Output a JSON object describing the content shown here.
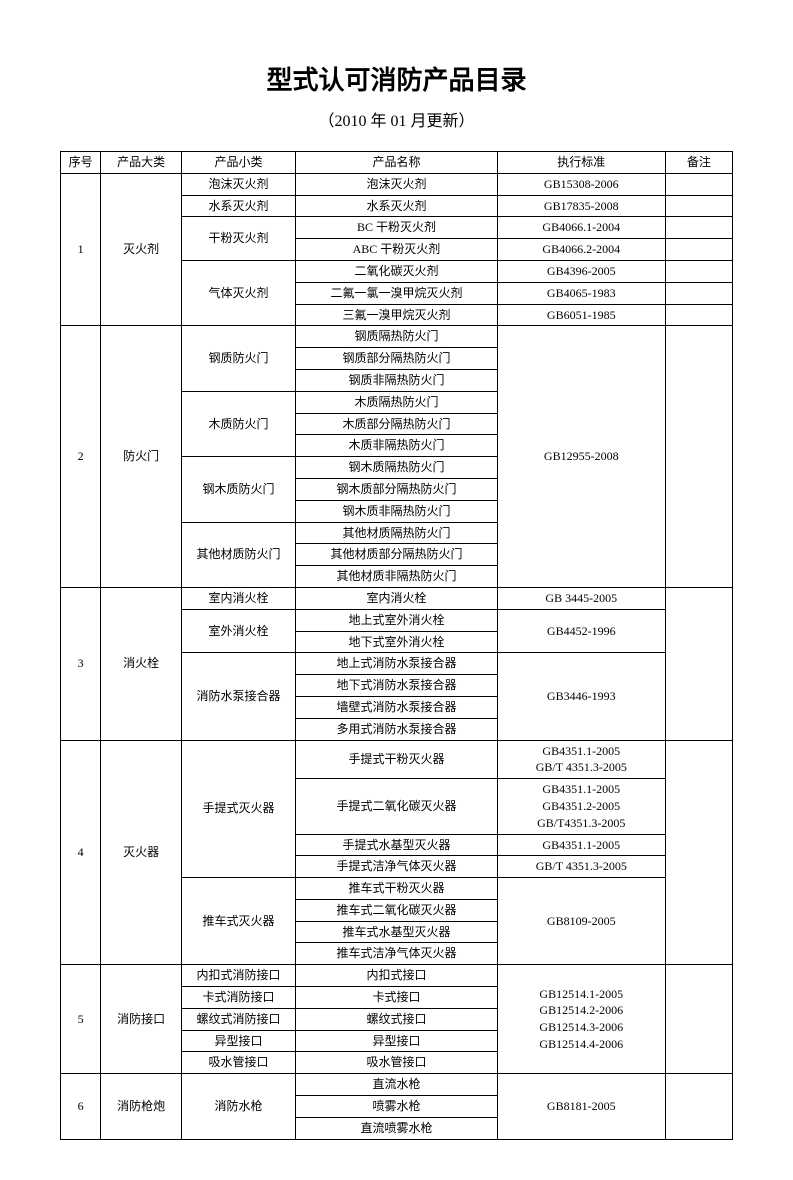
{
  "title": "型式认可消防产品目录",
  "subtitle": "（2010 年 01 月更新）",
  "columns": [
    "序号",
    "产品大类",
    "产品小类",
    "产品名称",
    "执行标准",
    "备注"
  ],
  "rows": [
    {
      "seq": "1",
      "seqRowspan": 7,
      "cat": "灭火剂",
      "catRowspan": 7,
      "sub": "泡沫灭火剂",
      "subRowspan": 1,
      "name": "泡沫灭火剂",
      "std": "GB15308-2006",
      "stdRowspan": 1,
      "remark": "",
      "remarkRowspan": 1
    },
    {
      "sub": "水系灭火剂",
      "subRowspan": 1,
      "name": "水系灭火剂",
      "std": "GB17835-2008",
      "stdRowspan": 1,
      "remark": "",
      "remarkRowspan": 1
    },
    {
      "sub": "干粉灭火剂",
      "subRowspan": 2,
      "name": "BC 干粉灭火剂",
      "std": "GB4066.1-2004",
      "stdRowspan": 1,
      "remark": "",
      "remarkRowspan": 1
    },
    {
      "name": "ABC 干粉灭火剂",
      "std": "GB4066.2-2004",
      "stdRowspan": 1,
      "remark": "",
      "remarkRowspan": 1
    },
    {
      "sub": "气体灭火剂",
      "subRowspan": 3,
      "name": "二氧化碳灭火剂",
      "std": "GB4396-2005",
      "stdRowspan": 1,
      "remark": "",
      "remarkRowspan": 1
    },
    {
      "name": "二氟一氯一溴甲烷灭火剂",
      "std": "GB4065-1983",
      "stdRowspan": 1,
      "remark": "",
      "remarkRowspan": 1
    },
    {
      "name": "三氟一溴甲烷灭火剂",
      "std": "GB6051-1985",
      "stdRowspan": 1,
      "remark": "",
      "remarkRowspan": 1
    },
    {
      "seq": "2",
      "seqRowspan": 12,
      "cat": "防火门",
      "catRowspan": 12,
      "sub": "钢质防火门",
      "subRowspan": 3,
      "name": "钢质隔热防火门",
      "std": "GB12955-2008",
      "stdRowspan": 12,
      "remark": "",
      "remarkRowspan": 12
    },
    {
      "name": "钢质部分隔热防火门"
    },
    {
      "name": "钢质非隔热防火门"
    },
    {
      "sub": "木质防火门",
      "subRowspan": 3,
      "name": "木质隔热防火门"
    },
    {
      "name": "木质部分隔热防火门"
    },
    {
      "name": "木质非隔热防火门"
    },
    {
      "sub": "钢木质防火门",
      "subRowspan": 3,
      "name": "钢木质隔热防火门"
    },
    {
      "name": "钢木质部分隔热防火门"
    },
    {
      "name": "钢木质非隔热防火门"
    },
    {
      "sub": "其他材质防火门",
      "subRowspan": 3,
      "name": "其他材质隔热防火门"
    },
    {
      "name": "其他材质部分隔热防火门"
    },
    {
      "name": "其他材质非隔热防火门"
    },
    {
      "seq": "3",
      "seqRowspan": 7,
      "cat": "消火栓",
      "catRowspan": 7,
      "sub": "室内消火栓",
      "subRowspan": 1,
      "name": "室内消火栓",
      "std": "GB 3445-2005",
      "stdRowspan": 1,
      "remark": "",
      "remarkRowspan": 7
    },
    {
      "sub": "室外消火栓",
      "subRowspan": 2,
      "name": "地上式室外消火栓",
      "std": "GB4452-1996",
      "stdRowspan": 2
    },
    {
      "name": "地下式室外消火栓"
    },
    {
      "sub": "消防水泵接合器",
      "subRowspan": 4,
      "name": "地上式消防水泵接合器",
      "std": "GB3446-1993",
      "stdRowspan": 4
    },
    {
      "name": "地下式消防水泵接合器"
    },
    {
      "name": "墙壁式消防水泵接合器"
    },
    {
      "name": "多用式消防水泵接合器"
    },
    {
      "seq": "4",
      "seqRowspan": 8,
      "cat": "灭火器",
      "catRowspan": 8,
      "sub": "手提式灭火器",
      "subRowspan": 4,
      "name": "手提式干粉灭火器",
      "std": "GB4351.1-2005\nGB/T 4351.3-2005",
      "stdRowspan": 1,
      "remark": "",
      "remarkRowspan": 8
    },
    {
      "name": "手提式二氧化碳灭火器",
      "std": "GB4351.1-2005\nGB4351.2-2005\nGB/T4351.3-2005",
      "stdRowspan": 1
    },
    {
      "name": "手提式水基型灭火器",
      "std": "GB4351.1-2005",
      "stdRowspan": 1
    },
    {
      "name": "手提式洁净气体灭火器",
      "std": "GB/T 4351.3-2005",
      "stdRowspan": 1
    },
    {
      "sub": "推车式灭火器",
      "subRowspan": 4,
      "name": "推车式干粉灭火器",
      "std": "GB8109-2005",
      "stdRowspan": 4
    },
    {
      "name": "推车式二氧化碳灭火器"
    },
    {
      "name": "推车式水基型灭火器"
    },
    {
      "name": "推车式洁净气体灭火器"
    },
    {
      "seq": "5",
      "seqRowspan": 5,
      "cat": "消防接口",
      "catRowspan": 5,
      "sub": "内扣式消防接口",
      "subRowspan": 1,
      "name": "内扣式接口",
      "std": "GB12514.1-2005\nGB12514.2-2006\nGB12514.3-2006\nGB12514.4-2006",
      "stdRowspan": 5,
      "remark": "",
      "remarkRowspan": 5
    },
    {
      "sub": "卡式消防接口",
      "subRowspan": 1,
      "name": "卡式接口"
    },
    {
      "sub": "螺纹式消防接口",
      "subRowspan": 1,
      "name": "螺纹式接口"
    },
    {
      "sub": "异型接口",
      "subRowspan": 1,
      "name": "异型接口"
    },
    {
      "sub": "吸水管接口",
      "subRowspan": 1,
      "name": "吸水管接口"
    },
    {
      "seq": "6",
      "seqRowspan": 3,
      "cat": "消防枪炮",
      "catRowspan": 3,
      "sub": "消防水枪",
      "subRowspan": 3,
      "name": "直流水枪",
      "std": "GB8181-2005",
      "stdRowspan": 3,
      "remark": "",
      "remarkRowspan": 3
    },
    {
      "name": "喷雾水枪"
    },
    {
      "name": "直流喷雾水枪"
    }
  ]
}
